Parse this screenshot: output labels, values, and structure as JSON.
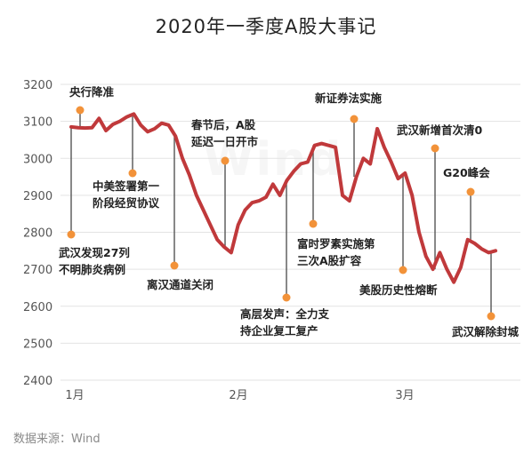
{
  "chart_data": {
    "type": "line",
    "title": "2020年一季度A股大事记",
    "xlabel": "",
    "ylabel": "",
    "x_ticks": [
      "1月",
      "2月",
      "3月"
    ],
    "y_ticks": [
      2400,
      2500,
      2600,
      2700,
      2800,
      2900,
      3000,
      3100,
      3200
    ],
    "ylim": [
      2400,
      3200
    ],
    "grid": true,
    "line_color": "#c0393b",
    "marker_color": "#f29239",
    "series": [
      {
        "values": [
          3085,
          3083,
          3082,
          3083,
          3108,
          3075,
          3092,
          3100,
          3112,
          3120,
          3090,
          3072,
          3080,
          3095,
          3090,
          3060,
          3000,
          2955,
          2900,
          2860,
          2820,
          2780,
          2760,
          2745,
          2820,
          2860,
          2880,
          2885,
          2895,
          2930,
          2900,
          2940,
          2965,
          2985,
          2990,
          3035,
          3040,
          3035,
          3030,
          2900,
          2885,
          2950,
          3000,
          2985,
          3080,
          3030,
          2990,
          2945,
          2960,
          2900,
          2800,
          2735,
          2700,
          2745,
          2700,
          2665,
          2705,
          2780,
          2770,
          2755,
          2745,
          2750
        ]
      }
    ],
    "annotations": [
      {
        "lines": [
          "央行降准"
        ],
        "marker_value": 3090
      },
      {
        "lines": [
          "武汉发现27列",
          "不明肺炎病例"
        ],
        "marker_value": 2795
      },
      {
        "lines": [
          "中美签署第一",
          "阶段经贸协议"
        ],
        "marker_value": 2960
      },
      {
        "lines": [
          "离汉通道关闭"
        ],
        "marker_value": 2710
      },
      {
        "lines": [
          "春节后，A股",
          "延迟一日开市"
        ],
        "marker_value": 2995
      },
      {
        "lines": [
          "高层发声：全力支",
          "持企业复工复产"
        ],
        "marker_value": 2620
      },
      {
        "lines": [
          "富时罗素实施第",
          "三次A股扩容"
        ],
        "marker_value": 2820
      },
      {
        "lines": [
          "新证券法实施"
        ],
        "marker_value": 3105
      },
      {
        "lines": [
          "美股历史性熔断"
        ],
        "marker_value": 2695
      },
      {
        "lines": [
          "武汉新增首次清0"
        ],
        "marker_value": 3025
      },
      {
        "lines": [
          "G20峰会"
        ],
        "marker_value": 2910
      },
      {
        "lines": [
          "武汉解除封城"
        ],
        "marker_value": 2575
      }
    ]
  },
  "source": "数据来源：Wind",
  "watermark": "Wind"
}
